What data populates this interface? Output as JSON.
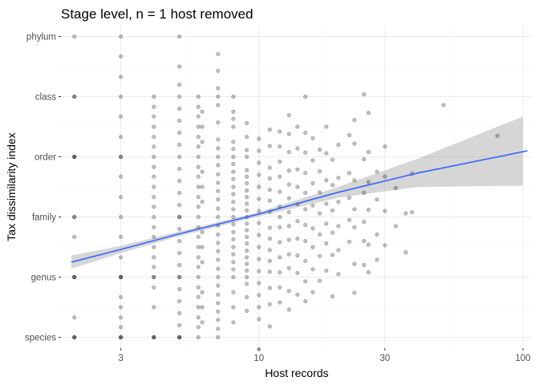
{
  "chart_data": {
    "type": "scatter",
    "title": "Stage level, n = 1 host removed",
    "xlabel": "Host records",
    "ylabel": "Tax dissimilarity index",
    "x_scale": "log10",
    "xlim": [
      1.78,
      108
    ],
    "ylim": [
      0.82,
      6.18
    ],
    "x_ticks": [
      3,
      10,
      30,
      100
    ],
    "x_tick_labels": [
      "3",
      "10",
      "30",
      "100"
    ],
    "y_ticks": [
      1,
      2,
      3,
      4,
      5,
      6
    ],
    "y_tick_labels": [
      "species",
      "genus",
      "family",
      "order",
      "class",
      "phylum"
    ],
    "grid": true,
    "point_color": "#000000",
    "point_opacity": 0.25,
    "trend_color": "#3366ff",
    "band_color": "#999999",
    "points": [
      [
        2,
        1
      ],
      [
        2,
        1
      ],
      [
        2,
        1
      ],
      [
        2,
        1.33
      ],
      [
        2,
        2
      ],
      [
        2,
        2
      ],
      [
        2,
        2
      ],
      [
        2,
        2.67
      ],
      [
        2,
        3
      ],
      [
        2,
        3
      ],
      [
        2,
        4
      ],
      [
        2,
        4
      ],
      [
        2,
        4
      ],
      [
        2,
        5
      ],
      [
        2,
        5
      ],
      [
        2,
        6
      ],
      [
        3,
        1
      ],
      [
        3,
        1
      ],
      [
        3,
        1
      ],
      [
        3,
        1.17
      ],
      [
        3,
        1.33
      ],
      [
        3,
        1.5
      ],
      [
        3,
        1.67
      ],
      [
        3,
        2
      ],
      [
        3,
        2
      ],
      [
        3,
        2
      ],
      [
        3,
        2.33
      ],
      [
        3,
        2.67
      ],
      [
        3,
        3
      ],
      [
        3,
        3.33
      ],
      [
        3,
        3.67
      ],
      [
        3,
        4
      ],
      [
        3,
        4
      ],
      [
        3,
        4.33
      ],
      [
        3,
        4.67
      ],
      [
        3,
        5
      ],
      [
        3,
        5.33
      ],
      [
        3,
        5.67
      ],
      [
        3,
        6
      ],
      [
        4,
        1
      ],
      [
        4,
        1
      ],
      [
        4,
        1
      ],
      [
        4,
        1.5
      ],
      [
        4,
        1.83
      ],
      [
        4,
        2
      ],
      [
        4,
        2
      ],
      [
        4,
        2.17
      ],
      [
        4,
        2.33
      ],
      [
        4,
        2.5
      ],
      [
        4,
        2.67
      ],
      [
        4,
        2.83
      ],
      [
        4,
        3
      ],
      [
        4,
        3.17
      ],
      [
        4,
        3.33
      ],
      [
        4,
        3.5
      ],
      [
        4,
        3.67
      ],
      [
        4,
        3.83
      ],
      [
        4,
        4
      ],
      [
        4,
        4.17
      ],
      [
        4,
        4.33
      ],
      [
        4,
        4.5
      ],
      [
        4,
        4.67
      ],
      [
        4,
        4.83
      ],
      [
        4,
        5
      ],
      [
        5,
        1
      ],
      [
        5,
        1
      ],
      [
        5,
        1
      ],
      [
        5,
        1.2
      ],
      [
        5,
        1.4
      ],
      [
        5,
        1.6
      ],
      [
        5,
        1.8
      ],
      [
        5,
        2
      ],
      [
        5,
        2
      ],
      [
        5,
        2.2
      ],
      [
        5,
        2.4
      ],
      [
        5,
        2.6
      ],
      [
        5,
        2.8
      ],
      [
        5,
        3
      ],
      [
        5,
        3
      ],
      [
        5,
        3.2
      ],
      [
        5,
        3.4
      ],
      [
        5,
        3.6
      ],
      [
        5,
        3.8
      ],
      [
        5,
        4
      ],
      [
        5,
        4.2
      ],
      [
        5,
        4.4
      ],
      [
        5,
        4.6
      ],
      [
        5,
        4.8
      ],
      [
        5,
        5
      ],
      [
        5,
        5.2
      ],
      [
        5,
        5.5
      ],
      [
        5,
        6
      ],
      [
        5.9,
        1
      ],
      [
        5.9,
        1.17
      ],
      [
        5.9,
        1.33
      ],
      [
        5.9,
        1.5
      ],
      [
        5.9,
        1.67
      ],
      [
        5.9,
        1.83
      ],
      [
        5.9,
        2
      ],
      [
        5.9,
        2.17
      ],
      [
        5.9,
        2.33
      ],
      [
        5.9,
        2.5
      ],
      [
        5.9,
        2.67
      ],
      [
        5.9,
        2.83
      ],
      [
        5.9,
        3
      ],
      [
        5.9,
        3.17
      ],
      [
        5.9,
        3.33
      ],
      [
        5.9,
        3.5
      ],
      [
        5.9,
        3.67
      ],
      [
        5.9,
        3.83
      ],
      [
        5.9,
        4
      ],
      [
        5.9,
        4.17
      ],
      [
        5.9,
        4.33
      ],
      [
        5.9,
        4.5
      ],
      [
        5.9,
        4.67
      ],
      [
        5.9,
        4.83
      ],
      [
        5.9,
        5
      ],
      [
        6.1,
        1.25
      ],
      [
        6.1,
        1.5
      ],
      [
        6.1,
        1.75
      ],
      [
        6.1,
        2.25
      ],
      [
        6.1,
        2.5
      ],
      [
        6.1,
        2.75
      ],
      [
        6.1,
        3.25
      ],
      [
        6.1,
        3.5
      ],
      [
        6.1,
        3.75
      ],
      [
        6.1,
        4.25
      ],
      [
        6.1,
        4.5
      ],
      [
        6.1,
        4.75
      ],
      [
        7,
        1
      ],
      [
        7,
        1.14
      ],
      [
        7,
        1.29
      ],
      [
        7,
        1.43
      ],
      [
        7,
        1.57
      ],
      [
        7,
        1.71
      ],
      [
        7,
        1.86
      ],
      [
        7,
        2
      ],
      [
        7,
        2.14
      ],
      [
        7,
        2.29
      ],
      [
        7,
        2.43
      ],
      [
        7,
        2.57
      ],
      [
        7,
        2.71
      ],
      [
        7,
        2.86
      ],
      [
        7,
        3
      ],
      [
        7,
        3.14
      ],
      [
        7,
        3.29
      ],
      [
        7,
        3.43
      ],
      [
        7,
        3.57
      ],
      [
        7,
        3.71
      ],
      [
        7,
        3.86
      ],
      [
        7,
        4
      ],
      [
        7,
        4.14
      ],
      [
        7,
        4.29
      ],
      [
        7,
        4.57
      ],
      [
        7,
        4.86
      ],
      [
        7,
        5
      ],
      [
        7,
        5.14
      ],
      [
        7,
        5.43
      ],
      [
        7,
        5.71
      ],
      [
        8,
        1.25
      ],
      [
        8,
        1.5
      ],
      [
        8,
        1.75
      ],
      [
        8,
        2
      ],
      [
        8,
        2.13
      ],
      [
        8,
        2.25
      ],
      [
        8,
        2.38
      ],
      [
        8,
        2.5
      ],
      [
        8,
        2.63
      ],
      [
        8,
        2.75
      ],
      [
        8,
        2.88
      ],
      [
        8,
        3
      ],
      [
        8,
        3.13
      ],
      [
        8,
        3.25
      ],
      [
        8,
        3.38
      ],
      [
        8,
        3.5
      ],
      [
        8,
        3.63
      ],
      [
        8,
        3.75
      ],
      [
        8,
        3.88
      ],
      [
        8,
        4
      ],
      [
        8,
        4.13
      ],
      [
        8,
        4.25
      ],
      [
        8,
        4.5
      ],
      [
        8,
        4.63
      ],
      [
        8,
        4.75
      ],
      [
        8,
        5
      ],
      [
        9,
        1.44
      ],
      [
        9,
        1.67
      ],
      [
        9,
        1.89
      ],
      [
        9,
        2
      ],
      [
        9,
        2.11
      ],
      [
        9,
        2.22
      ],
      [
        9,
        2.33
      ],
      [
        9,
        2.44
      ],
      [
        9,
        2.56
      ],
      [
        9,
        2.67
      ],
      [
        9,
        2.78
      ],
      [
        9,
        2.89
      ],
      [
        9,
        3
      ],
      [
        9,
        3.11
      ],
      [
        9,
        3.22
      ],
      [
        9,
        3.33
      ],
      [
        9,
        3.44
      ],
      [
        9,
        3.56
      ],
      [
        9,
        3.67
      ],
      [
        9,
        3.78
      ],
      [
        9,
        4
      ],
      [
        9,
        4.11
      ],
      [
        9,
        4.33
      ],
      [
        9,
        4.56
      ],
      [
        10,
        0.8
      ],
      [
        10,
        1.3
      ],
      [
        10,
        1.5
      ],
      [
        10,
        1.7
      ],
      [
        10,
        1.9
      ],
      [
        10,
        2.1
      ],
      [
        10,
        2.3
      ],
      [
        10,
        2.5
      ],
      [
        10,
        2.7
      ],
      [
        10,
        2.9
      ],
      [
        10,
        3.1
      ],
      [
        10,
        3.3
      ],
      [
        10,
        3.5
      ],
      [
        10,
        3.7
      ],
      [
        10,
        3.9
      ],
      [
        10,
        4.1
      ],
      [
        10,
        4.3
      ],
      [
        11,
        1.18
      ],
      [
        11,
        1.55
      ],
      [
        11,
        1.82
      ],
      [
        11,
        2.09
      ],
      [
        11,
        2.27
      ],
      [
        11,
        2.45
      ],
      [
        11,
        2.64
      ],
      [
        11,
        2.82
      ],
      [
        11,
        3.09
      ],
      [
        11,
        3.27
      ],
      [
        11,
        3.45
      ],
      [
        11,
        3.64
      ],
      [
        11,
        3.82
      ],
      [
        11,
        4.18
      ],
      [
        11,
        4.45
      ],
      [
        12,
        1.58
      ],
      [
        12,
        1.83
      ],
      [
        12,
        2.08
      ],
      [
        12,
        2.33
      ],
      [
        12,
        2.58
      ],
      [
        12,
        2.83
      ],
      [
        12,
        3
      ],
      [
        12,
        3.17
      ],
      [
        12,
        3.42
      ],
      [
        12,
        3.67
      ],
      [
        12,
        3.92
      ],
      [
        12,
        4.17
      ],
      [
        12,
        4.42
      ],
      [
        13,
        1.46
      ],
      [
        13,
        1.77
      ],
      [
        13,
        2.15
      ],
      [
        13,
        2.38
      ],
      [
        13,
        2.62
      ],
      [
        13,
        2.85
      ],
      [
        13,
        3.08
      ],
      [
        13,
        3.31
      ],
      [
        13,
        3.54
      ],
      [
        13,
        3.77
      ],
      [
        13,
        4.08
      ],
      [
        13,
        4.38
      ],
      [
        13,
        4.69
      ],
      [
        14,
        1.71
      ],
      [
        14,
        2.07
      ],
      [
        14,
        2.36
      ],
      [
        14,
        2.64
      ],
      [
        14,
        2.93
      ],
      [
        14,
        3.21
      ],
      [
        14,
        3.5
      ],
      [
        14,
        3.79
      ],
      [
        14,
        4.14
      ],
      [
        14,
        4.5
      ],
      [
        15,
        1.6
      ],
      [
        15,
        1.93
      ],
      [
        15,
        2.27
      ],
      [
        15,
        2.6
      ],
      [
        15,
        2.87
      ],
      [
        15,
        3.13
      ],
      [
        15,
        3.4
      ],
      [
        15,
        3.73
      ],
      [
        15,
        4.07
      ],
      [
        15,
        4.4
      ],
      [
        15,
        5
      ],
      [
        16,
        1.75
      ],
      [
        16,
        2.13
      ],
      [
        16,
        2.5
      ],
      [
        16,
        2.81
      ],
      [
        16,
        3.19
      ],
      [
        16,
        3.56
      ],
      [
        16,
        3.94
      ],
      [
        16,
        4.31
      ],
      [
        17,
        1.94
      ],
      [
        17,
        2.35
      ],
      [
        17,
        2.71
      ],
      [
        17,
        3.06
      ],
      [
        17,
        3.41
      ],
      [
        17,
        3.76
      ],
      [
        17,
        4.12
      ],
      [
        18,
        2.11
      ],
      [
        18,
        2.56
      ],
      [
        18,
        2.89
      ],
      [
        18,
        3.22
      ],
      [
        18,
        3.61
      ],
      [
        18,
        4.06
      ],
      [
        18,
        4.5
      ],
      [
        19,
        1.68
      ],
      [
        19,
        2.37
      ],
      [
        19,
        2.74
      ],
      [
        19,
        3.11
      ],
      [
        19,
        3.53
      ],
      [
        19,
        3.95
      ],
      [
        20,
        2.05
      ],
      [
        20,
        2.45
      ],
      [
        20,
        2.85
      ],
      [
        20,
        3.25
      ],
      [
        20,
        3.65
      ],
      [
        20,
        4.2
      ],
      [
        22,
        2.59
      ],
      [
        22,
        2.95
      ],
      [
        22,
        3.32
      ],
      [
        22,
        3.73
      ],
      [
        22,
        4.36
      ],
      [
        23,
        1.74
      ],
      [
        23,
        2.22
      ],
      [
        23,
        2.83
      ],
      [
        23,
        3.13
      ],
      [
        23,
        3.61
      ],
      [
        23,
        4.22
      ],
      [
        23,
        4.61
      ],
      [
        25,
        2.2
      ],
      [
        25,
        2.6
      ],
      [
        25,
        2.92
      ],
      [
        25,
        3.4
      ],
      [
        25,
        3.96
      ],
      [
        25,
        5.04
      ],
      [
        26,
        2.08
      ],
      [
        26,
        2.54
      ],
      [
        26,
        3.12
      ],
      [
        26,
        3.58
      ],
      [
        26,
        4.08
      ],
      [
        26,
        4.73
      ],
      [
        28,
        2.29
      ],
      [
        28,
        2.71
      ],
      [
        28,
        3.29
      ],
      [
        28,
        3.75
      ],
      [
        30,
        2.53
      ],
      [
        30,
        3.1
      ],
      [
        30,
        3.67
      ],
      [
        30,
        4.17
      ],
      [
        33,
        2.85
      ],
      [
        33,
        3.48
      ],
      [
        36,
        2.41
      ],
      [
        36,
        3.06
      ],
      [
        38,
        3.08
      ],
      [
        38,
        3.72
      ],
      [
        50,
        4.86
      ],
      [
        80,
        4.35
      ]
    ],
    "trend_line": [
      [
        1.95,
        2.25
      ],
      [
        3,
        2.46
      ],
      [
        5,
        2.72
      ],
      [
        10,
        3.05
      ],
      [
        20,
        3.41
      ],
      [
        40,
        3.73
      ],
      [
        104,
        4.1
      ]
    ],
    "ci_upper": [
      [
        1.95,
        2.36
      ],
      [
        3,
        2.52
      ],
      [
        5,
        2.76
      ],
      [
        10,
        3.08
      ],
      [
        20,
        3.5
      ],
      [
        40,
        3.97
      ],
      [
        100,
        4.67
      ]
    ],
    "ci_lower": [
      [
        1.95,
        2.14
      ],
      [
        3,
        2.4
      ],
      [
        5,
        2.68
      ],
      [
        10,
        3.01
      ],
      [
        20,
        3.32
      ],
      [
        40,
        3.5
      ],
      [
        100,
        3.52
      ]
    ]
  }
}
